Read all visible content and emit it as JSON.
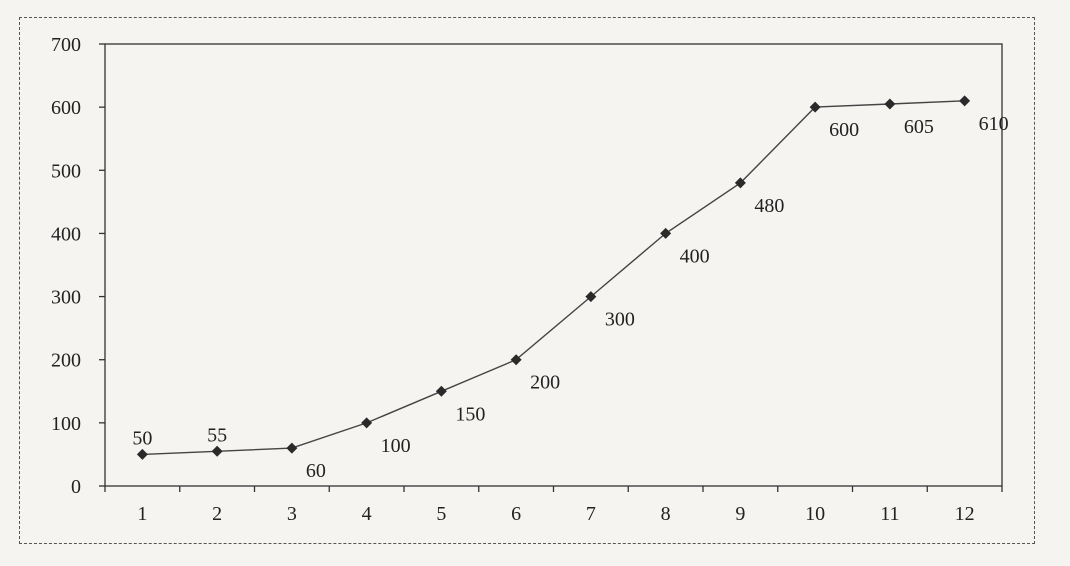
{
  "chart_data": {
    "type": "line",
    "x": [
      1,
      2,
      3,
      4,
      5,
      6,
      7,
      8,
      9,
      10,
      11,
      12
    ],
    "series": [
      {
        "values": [
          50,
          55,
          60,
          100,
          150,
          200,
          300,
          400,
          480,
          600,
          605,
          610
        ]
      }
    ],
    "data_labels": [
      "50",
      "55",
      "60",
      "100",
      "150",
      "200",
      "300",
      "400",
      "480",
      "600",
      "605",
      "610"
    ],
    "x_tick_labels": [
      "1",
      "2",
      "3",
      "4",
      "5",
      "6",
      "7",
      "8",
      "9",
      "10",
      "11",
      "12"
    ],
    "y_tick_labels": [
      "0",
      "100",
      "200",
      "300",
      "400",
      "500",
      "600",
      "700"
    ],
    "y_ticks": [
      0,
      100,
      200,
      300,
      400,
      500,
      600,
      700
    ],
    "ylim": [
      0,
      700
    ],
    "xlim": [
      0.5,
      12.5
    ],
    "marker": "diamond",
    "grid": false,
    "line_color": "#444444",
    "marker_color": "#2a2a2a",
    "title": "",
    "xlabel": "",
    "ylabel": ""
  }
}
